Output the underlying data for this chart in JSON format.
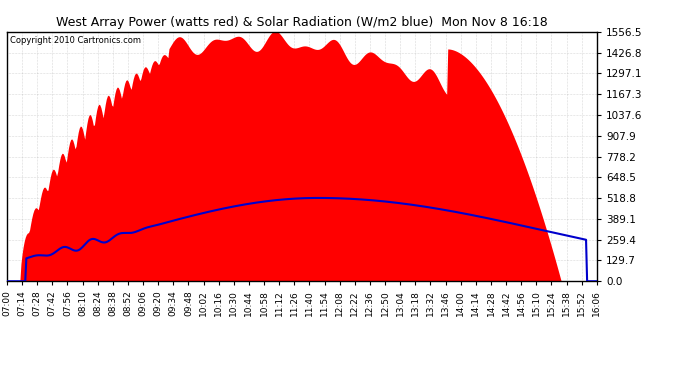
{
  "title": "West Array Power (watts red) & Solar Radiation (W/m2 blue)  Mon Nov 8 16:18",
  "copyright": "Copyright 2010 Cartronics.com",
  "y_max": 1556.5,
  "y_ticks": [
    0.0,
    129.7,
    259.4,
    389.1,
    518.8,
    648.5,
    778.2,
    907.9,
    1037.6,
    1167.3,
    1297.1,
    1426.8,
    1556.5
  ],
  "background_color": "#ffffff",
  "plot_bg_color": "#ffffff",
  "grid_color": "#888888",
  "fill_color": "#ff0000",
  "line_color": "#0000cc",
  "x_start_min": 420,
  "x_end_min": 966,
  "x_tick_interval_min": 14,
  "title_fontsize": 9,
  "copyright_fontsize": 6,
  "tick_fontsize": 6.5,
  "ytick_fontsize": 7.5
}
